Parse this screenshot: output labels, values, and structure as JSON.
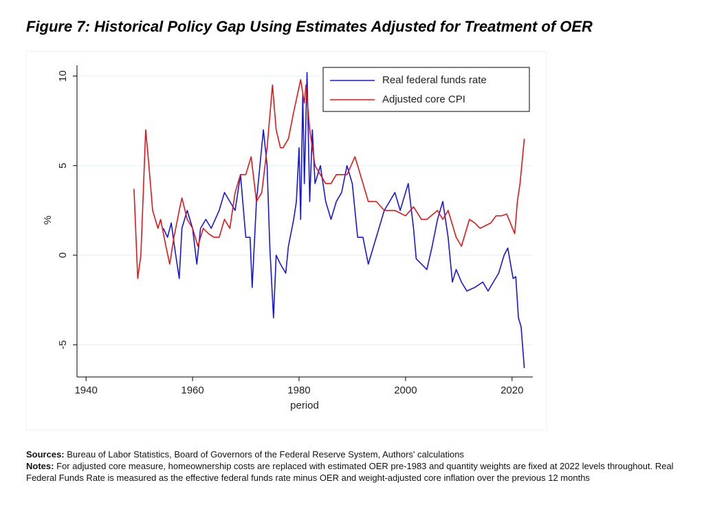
{
  "chart_data": {
    "type": "line",
    "title": "Figure 7: Historical Policy Gap Using Estimates Adjusted for Treatment of OER",
    "xlabel": "period",
    "ylabel": "%",
    "xlim": [
      1938.3,
      2023.9
    ],
    "xticks": [
      1940,
      1960,
      1980,
      2000,
      2020
    ],
    "ylim": [
      -6.8,
      10.6
    ],
    "yticks": [
      -5,
      0,
      5,
      10
    ],
    "grid": true,
    "legend": "top-right",
    "series": [
      {
        "name": "Real federal funds rate",
        "color": "#1515e6",
        "x": [
          1954.5,
          1955.3,
          1956,
          1956.7,
          1957.5,
          1958,
          1959,
          1960,
          1960.8,
          1961.5,
          1962.5,
          1963.5,
          1965,
          1966,
          1967,
          1968,
          1969,
          1970,
          1970.8,
          1971.2,
          1972,
          1973.3,
          1974,
          1974.5,
          1975.2,
          1975.7,
          1976.5,
          1977.5,
          1978,
          1979,
          1979.5,
          1980,
          1980.3,
          1980.7,
          1981,
          1981.5,
          1982,
          1982.5,
          1983,
          1984,
          1985,
          1986,
          1987,
          1988,
          1989,
          1990,
          1991,
          1992,
          1993,
          1994,
          1995,
          1996,
          1997,
          1998,
          1999,
          2000,
          2000.5,
          2001.5,
          2002,
          2003,
          2004,
          2005,
          2006,
          2007,
          2008,
          2008.8,
          2009.5,
          2010.5,
          2011.5,
          2013,
          2014.5,
          2015.5,
          2016.5,
          2017.5,
          2018.5,
          2019.2,
          2020.2,
          2020.7,
          2021.2,
          2021.7,
          2022.3
        ],
        "values": [
          1.5,
          1.0,
          1.8,
          0.3,
          -1.3,
          1.5,
          2.5,
          1.5,
          -0.5,
          1.5,
          2,
          1.5,
          2.5,
          3.5,
          3,
          2.5,
          4.5,
          1,
          1,
          -1.8,
          3,
          7,
          5,
          0.5,
          -3.5,
          0,
          -0.5,
          -1,
          0.5,
          2,
          3,
          6,
          2,
          9,
          4,
          10.2,
          3,
          7,
          4,
          5,
          3,
          2,
          3,
          3.5,
          5,
          4,
          1,
          1,
          -0.5,
          0.5,
          1.5,
          2.5,
          3,
          3.5,
          2.5,
          3.5,
          4,
          1.5,
          -0.2,
          -0.5,
          -0.8,
          0.5,
          2,
          3,
          1,
          -1.5,
          -0.8,
          -1.5,
          -2,
          -1.8,
          -1.5,
          -2,
          -1.5,
          -1,
          0,
          0.4,
          -1.3,
          -1.2,
          -3.5,
          -4,
          -6.3
        ]
      },
      {
        "name": "Adjusted core CPI",
        "color": "#e61515",
        "x": [
          1949,
          1949.7,
          1950.3,
          1951.2,
          1951.8,
          1952.5,
          1953.5,
          1954,
          1955,
          1955.7,
          1956.5,
          1957.5,
          1958,
          1959,
          1960,
          1961,
          1962,
          1963,
          1964,
          1965,
          1966,
          1967,
          1968,
          1969,
          1970,
          1971,
          1972,
          1973,
          1974,
          1975,
          1975.7,
          1976.5,
          1977,
          1978,
          1979,
          1980.3,
          1981,
          1981.3,
          1982,
          1983,
          1984,
          1985,
          1986,
          1987,
          1988,
          1989,
          1990.5,
          1991.5,
          1992.5,
          1993,
          1994.5,
          1996,
          1998,
          2000,
          2001.5,
          2003,
          2004,
          2006,
          2007,
          2008,
          2009.5,
          2010.5,
          2012,
          2013,
          2014,
          2016,
          2017,
          2018,
          2019,
          2020.5,
          2021,
          2021.5,
          2022.3
        ],
        "values": [
          3.7,
          -1.3,
          0,
          7,
          5,
          2.5,
          1.5,
          2,
          0.5,
          -0.5,
          1,
          2.5,
          3.2,
          2,
          1.5,
          0.5,
          1.5,
          1.2,
          1,
          1,
          2,
          1.5,
          3.5,
          4.5,
          4.5,
          5.5,
          3,
          3.5,
          6,
          9.5,
          7,
          6,
          6,
          6.5,
          8,
          9.8,
          8.5,
          9.5,
          7,
          5,
          4.5,
          4,
          4,
          4.5,
          4.5,
          4.5,
          5.5,
          4.5,
          3.5,
          3,
          3,
          2.5,
          2.5,
          2.2,
          2.7,
          2,
          2,
          2.5,
          2,
          2.5,
          1,
          0.5,
          2,
          1.8,
          1.5,
          1.8,
          2.2,
          2.2,
          2.3,
          1.2,
          3,
          4,
          6.5
        ]
      }
    ]
  },
  "footnotes": {
    "sources_label": "Sources:",
    "sources": "Bureau of Labor Statistics, Board of Governors of the Federal Reserve System, Authors' calculations",
    "notes_label": "Notes:",
    "notes": "For adjusted core measure, homeownership costs are replaced with estimated OER pre-1983 and quantity weights are fixed at 2022 levels throughout. Real Federal Funds Rate is measured as the effective federal funds rate minus OER and weight-adjusted core inflation over the previous 12 months"
  }
}
